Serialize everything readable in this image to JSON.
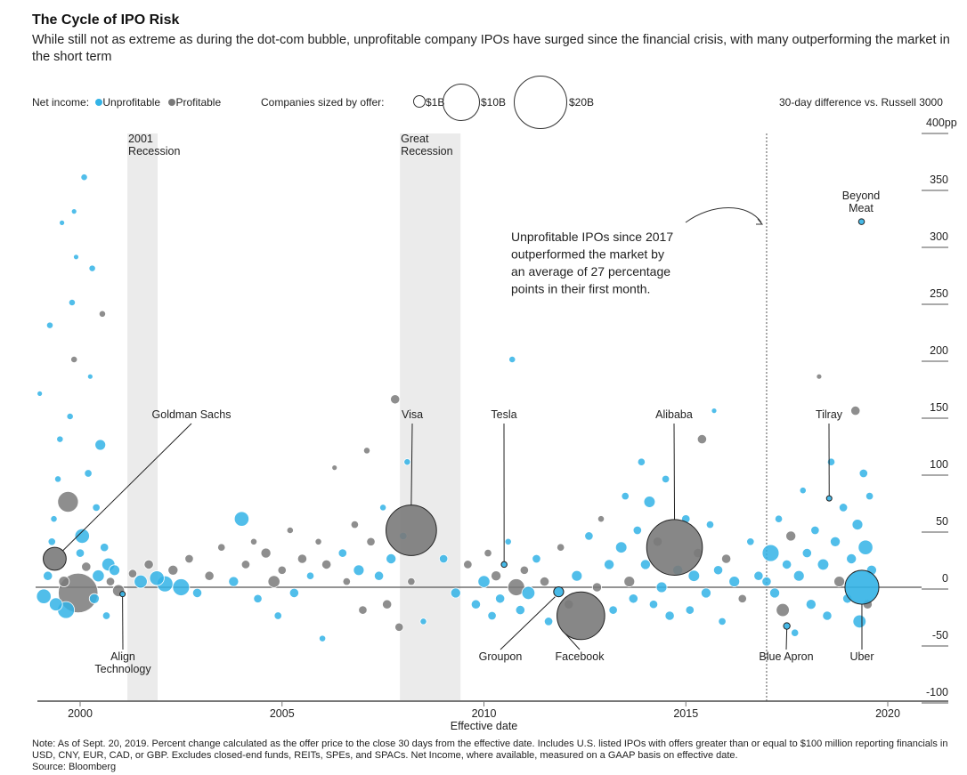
{
  "header": {
    "title": "The Cycle of IPO Risk",
    "subtitle": "While still not as extreme as during the dot-com bubble, unprofitable company IPOs have surged since the financial crisis, with many outperforming the market in the short term"
  },
  "legend": {
    "net_income_label": "Net income:",
    "unprofitable": "Unprofitable",
    "profitable": "Profitable",
    "size_label": "Companies sized by offer:",
    "sizes": [
      {
        "label": "$1B",
        "value": 1
      },
      {
        "label": "$10B",
        "value": 10
      },
      {
        "label": "$20B",
        "value": 20
      }
    ],
    "y_title": "30-day difference vs. Russell 3000"
  },
  "colors": {
    "unprofitable": "#33b3e6",
    "profitable": "#7a7a7a",
    "recession_shade": "#ebebeb"
  },
  "chart_data": {
    "type": "scatter",
    "xlabel": "Effective date",
    "ylabel": "30-day difference vs. Russell 3000",
    "xlim": [
      1998.9,
      2021.5
    ],
    "ylim": [
      -100,
      400
    ],
    "x_ticks": [
      {
        "v": 2000,
        "label": "2000"
      },
      {
        "v": 2005,
        "label": "2005"
      },
      {
        "v": 2010,
        "label": "2010"
      },
      {
        "v": 2015,
        "label": "2015"
      },
      {
        "v": 2020,
        "label": "2020"
      }
    ],
    "y_ticks": [
      {
        "v": 400,
        "label": "400pp"
      },
      {
        "v": 350,
        "label": "350"
      },
      {
        "v": 300,
        "label": "300"
      },
      {
        "v": 250,
        "label": "250"
      },
      {
        "v": 200,
        "label": "200"
      },
      {
        "v": 150,
        "label": "150"
      },
      {
        "v": 100,
        "label": "100"
      },
      {
        "v": 50,
        "label": "50"
      },
      {
        "v": 0,
        "label": "0"
      },
      {
        "v": -50,
        "label": "-50"
      },
      {
        "v": -100,
        "label": "-100"
      }
    ],
    "recessions": [
      {
        "start": 2001.17,
        "end": 2001.92,
        "label": [
          "2001",
          "Recession"
        ]
      },
      {
        "start": 2007.92,
        "end": 2009.42,
        "label": [
          "Great",
          "Recession"
        ]
      }
    ],
    "reference_line": {
      "x": 2017.0,
      "annotation": [
        "Unprofitable IPOs since 2017",
        "outperformed the market by",
        "an average of 27 percentage",
        "points in their first month."
      ]
    },
    "point_fields": [
      "date",
      "diff_pp",
      "offer_billion_usd",
      "profitable"
    ],
    "points": [
      [
        1999.1,
        -8,
        1.5,
        0
      ],
      [
        1999.2,
        10,
        0.6,
        0
      ],
      [
        1999.3,
        40,
        0.4,
        0
      ],
      [
        1999.35,
        60,
        0.3,
        0
      ],
      [
        1999.4,
        -15,
        1.2,
        0
      ],
      [
        1999.45,
        95,
        0.3,
        0
      ],
      [
        1999.5,
        130,
        0.3,
        0
      ],
      [
        1999.55,
        320,
        0.2,
        0
      ],
      [
        1999.6,
        5,
        0.8,
        1
      ],
      [
        1999.65,
        -20,
        2,
        0
      ],
      [
        1999.7,
        75,
        3,
        1
      ],
      [
        1999.75,
        150,
        0.3,
        0
      ],
      [
        1999.8,
        250,
        0.3,
        0
      ],
      [
        1999.85,
        200,
        0.3,
        1
      ],
      [
        1999.9,
        290,
        0.2,
        0
      ],
      [
        1999.95,
        -5,
        11,
        1
      ],
      [
        2000.0,
        30,
        0.5,
        0
      ],
      [
        2000.05,
        45,
        1.5,
        0
      ],
      [
        2000.1,
        360,
        0.3,
        0
      ],
      [
        2000.15,
        18,
        0.6,
        1
      ],
      [
        2000.2,
        100,
        0.4,
        0
      ],
      [
        2000.25,
        185,
        0.2,
        0
      ],
      [
        2000.3,
        280,
        0.3,
        0
      ],
      [
        2000.35,
        -10,
        0.7,
        0
      ],
      [
        2000.4,
        70,
        0.4,
        0
      ],
      [
        2000.45,
        10,
        1,
        0
      ],
      [
        2000.5,
        125,
        0.8,
        0
      ],
      [
        2000.55,
        240,
        0.3,
        1
      ],
      [
        2000.6,
        35,
        0.5,
        0
      ],
      [
        2000.65,
        -25,
        0.4,
        0
      ],
      [
        2000.7,
        20,
        1.2,
        0
      ],
      [
        2000.75,
        5,
        0.5,
        1
      ],
      [
        2000.85,
        15,
        0.8,
        0
      ],
      [
        2000.95,
        -3,
        1,
        1
      ],
      [
        1999.0,
        170,
        0.2,
        0
      ],
      [
        1999.25,
        230,
        0.3,
        0
      ],
      [
        1999.85,
        330,
        0.2,
        0
      ],
      [
        2001.3,
        12,
        0.5,
        1
      ],
      [
        2001.5,
        5,
        1.2,
        0
      ],
      [
        2001.7,
        20,
        0.6,
        1
      ],
      [
        2001.9,
        8,
        1.5,
        0
      ],
      [
        2002.1,
        3,
        1.8,
        0
      ],
      [
        2002.3,
        15,
        0.7,
        1
      ],
      [
        2002.5,
        0,
        2,
        0
      ],
      [
        2002.7,
        25,
        0.5,
        1
      ],
      [
        2002.9,
        -5,
        0.6,
        0
      ],
      [
        2003.2,
        10,
        0.6,
        1
      ],
      [
        2003.5,
        35,
        0.4,
        1
      ],
      [
        2003.8,
        5,
        0.7,
        0
      ],
      [
        2004.0,
        60,
        1.5,
        0
      ],
      [
        2004.1,
        20,
        0.5,
        1
      ],
      [
        2004.3,
        40,
        0.3,
        1
      ],
      [
        2004.4,
        -10,
        0.5,
        0
      ],
      [
        2004.6,
        30,
        0.7,
        1
      ],
      [
        2004.8,
        5,
        1,
        1
      ],
      [
        2004.9,
        -25,
        0.4,
        0
      ],
      [
        2005.0,
        15,
        0.5,
        1
      ],
      [
        2005.2,
        50,
        0.3,
        1
      ],
      [
        2005.3,
        -5,
        0.6,
        0
      ],
      [
        2005.5,
        25,
        0.6,
        1
      ],
      [
        2005.7,
        10,
        0.4,
        0
      ],
      [
        2005.9,
        40,
        0.3,
        1
      ],
      [
        2006.0,
        -45,
        0.3,
        0
      ],
      [
        2006.1,
        20,
        0.6,
        1
      ],
      [
        2006.3,
        105,
        0.2,
        1
      ],
      [
        2006.5,
        30,
        0.5,
        0
      ],
      [
        2006.6,
        5,
        0.4,
        1
      ],
      [
        2006.8,
        55,
        0.4,
        1
      ],
      [
        2006.9,
        15,
        0.8,
        0
      ],
      [
        2007.0,
        -20,
        0.5,
        1
      ],
      [
        2007.1,
        120,
        0.3,
        1
      ],
      [
        2007.2,
        40,
        0.5,
        1
      ],
      [
        2007.4,
        10,
        0.6,
        0
      ],
      [
        2007.5,
        70,
        0.3,
        0
      ],
      [
        2007.6,
        -15,
        0.6,
        1
      ],
      [
        2007.7,
        25,
        0.7,
        0
      ],
      [
        2007.8,
        165,
        0.6,
        1
      ],
      [
        2007.9,
        -35,
        0.5,
        1
      ],
      [
        2008.0,
        45,
        0.4,
        0
      ],
      [
        2008.1,
        110,
        0.3,
        0
      ],
      [
        2008.2,
        5,
        0.4,
        1
      ],
      [
        2008.5,
        -30,
        0.3,
        0
      ],
      [
        2009.0,
        25,
        0.5,
        0
      ],
      [
        2009.3,
        -5,
        0.7,
        0
      ],
      [
        2009.6,
        20,
        0.5,
        1
      ],
      [
        2009.8,
        -15,
        0.6,
        0
      ],
      [
        2010.0,
        5,
        1,
        0
      ],
      [
        2010.1,
        30,
        0.4,
        1
      ],
      [
        2010.2,
        -25,
        0.5,
        0
      ],
      [
        2010.3,
        10,
        0.7,
        1
      ],
      [
        2010.4,
        -10,
        0.6,
        0
      ],
      [
        2010.6,
        40,
        0.3,
        0
      ],
      [
        2010.7,
        200,
        0.3,
        0
      ],
      [
        2010.8,
        0,
        2,
        1
      ],
      [
        2010.9,
        -20,
        0.6,
        0
      ],
      [
        2011.0,
        15,
        0.5,
        1
      ],
      [
        2011.1,
        -5,
        1.2,
        0
      ],
      [
        2011.3,
        25,
        0.5,
        0
      ],
      [
        2011.5,
        5,
        0.6,
        1
      ],
      [
        2011.6,
        -30,
        0.5,
        0
      ],
      [
        2011.9,
        35,
        0.4,
        1
      ],
      [
        2012.1,
        -15,
        0.6,
        1
      ],
      [
        2012.3,
        10,
        0.8,
        0
      ],
      [
        2012.6,
        45,
        0.5,
        0
      ],
      [
        2012.8,
        0,
        0.6,
        1
      ],
      [
        2012.9,
        60,
        0.3,
        1
      ],
      [
        2013.1,
        20,
        0.7,
        0
      ],
      [
        2013.2,
        -20,
        0.5,
        0
      ],
      [
        2013.4,
        35,
        0.9,
        0
      ],
      [
        2013.5,
        80,
        0.4,
        0
      ],
      [
        2013.6,
        5,
        0.8,
        1
      ],
      [
        2013.7,
        -10,
        0.6,
        0
      ],
      [
        2013.8,
        50,
        0.5,
        0
      ],
      [
        2013.9,
        110,
        0.4,
        0
      ],
      [
        2014.0,
        20,
        0.7,
        0
      ],
      [
        2014.1,
        75,
        0.9,
        0
      ],
      [
        2014.2,
        -15,
        0.5,
        0
      ],
      [
        2014.3,
        40,
        0.6,
        1
      ],
      [
        2014.4,
        0,
        0.8,
        0
      ],
      [
        2014.5,
        95,
        0.4,
        0
      ],
      [
        2014.6,
        -25,
        0.6,
        0
      ],
      [
        2014.8,
        15,
        0.7,
        0
      ],
      [
        2015.0,
        60,
        0.5,
        0
      ],
      [
        2015.1,
        -20,
        0.5,
        0
      ],
      [
        2015.2,
        10,
        0.9,
        0
      ],
      [
        2015.3,
        30,
        0.6,
        1
      ],
      [
        2015.4,
        130,
        0.6,
        1
      ],
      [
        2015.5,
        -5,
        0.7,
        0
      ],
      [
        2015.6,
        55,
        0.4,
        0
      ],
      [
        2015.7,
        155,
        0.2,
        0
      ],
      [
        2015.8,
        15,
        0.6,
        0
      ],
      [
        2015.9,
        -30,
        0.4,
        0
      ],
      [
        2016.0,
        25,
        0.6,
        1
      ],
      [
        2016.2,
        5,
        0.8,
        0
      ],
      [
        2016.4,
        -10,
        0.5,
        1
      ],
      [
        2016.6,
        40,
        0.4,
        0
      ],
      [
        2016.8,
        10,
        0.6,
        0
      ],
      [
        2017.0,
        5,
        0.6,
        0
      ],
      [
        2017.1,
        30,
        2,
        0
      ],
      [
        2017.2,
        -5,
        0.7,
        0
      ],
      [
        2017.3,
        60,
        0.4,
        0
      ],
      [
        2017.4,
        -20,
        1.2,
        1
      ],
      [
        2017.5,
        20,
        0.6,
        0
      ],
      [
        2017.6,
        45,
        0.7,
        1
      ],
      [
        2017.7,
        -40,
        0.4,
        0
      ],
      [
        2017.8,
        10,
        0.8,
        0
      ],
      [
        2017.9,
        85,
        0.3,
        0
      ],
      [
        2018.0,
        30,
        0.6,
        0
      ],
      [
        2018.1,
        -15,
        0.7,
        0
      ],
      [
        2018.2,
        50,
        0.5,
        0
      ],
      [
        2018.3,
        185,
        0.2,
        1
      ],
      [
        2018.4,
        20,
        0.9,
        0
      ],
      [
        2018.5,
        -25,
        0.6,
        0
      ],
      [
        2018.6,
        110,
        0.4,
        0
      ],
      [
        2018.7,
        40,
        0.7,
        0
      ],
      [
        2018.8,
        5,
        0.8,
        1
      ],
      [
        2018.9,
        70,
        0.5,
        0
      ],
      [
        2019.0,
        -10,
        0.6,
        0
      ],
      [
        2019.1,
        25,
        0.7,
        0
      ],
      [
        2019.2,
        155,
        0.6,
        1
      ],
      [
        2019.25,
        55,
        0.8,
        0
      ],
      [
        2019.3,
        -30,
        1.2,
        0
      ],
      [
        2019.4,
        100,
        0.5,
        0
      ],
      [
        2019.45,
        35,
        1.5,
        0
      ],
      [
        2019.5,
        -15,
        0.6,
        1
      ],
      [
        2019.55,
        80,
        0.4,
        0
      ],
      [
        2019.6,
        15,
        0.7,
        0
      ]
    ],
    "labeled_companies": [
      {
        "name": "Goldman Sachs",
        "date": 1999.37,
        "diff_pp": 25,
        "offer_billion_usd": 3.7,
        "profitable": 1
      },
      {
        "name": "Align Technology",
        "date": 2001.05,
        "diff_pp": -6,
        "offer_billion_usd": 0.13,
        "profitable": 0
      },
      {
        "name": "Visa",
        "date": 2008.2,
        "diff_pp": 50,
        "offer_billion_usd": 17.9,
        "profitable": 1
      },
      {
        "name": "Tesla",
        "date": 2010.5,
        "diff_pp": 20,
        "offer_billion_usd": 0.23,
        "profitable": 0
      },
      {
        "name": "Groupon",
        "date": 2011.85,
        "diff_pp": -4,
        "offer_billion_usd": 0.7,
        "profitable": 0
      },
      {
        "name": "Facebook",
        "date": 2012.4,
        "diff_pp": -25,
        "offer_billion_usd": 16,
        "profitable": 1
      },
      {
        "name": "Alibaba",
        "date": 2014.72,
        "diff_pp": 35,
        "offer_billion_usd": 21.8,
        "profitable": 1
      },
      {
        "name": "Blue Apron",
        "date": 2017.5,
        "diff_pp": -34,
        "offer_billion_usd": 0.3,
        "profitable": 0
      },
      {
        "name": "Tilray",
        "date": 2018.55,
        "diff_pp": 78,
        "offer_billion_usd": 0.15,
        "profitable": 0
      },
      {
        "name": "Uber",
        "date": 2019.36,
        "diff_pp": 0,
        "offer_billion_usd": 8.1,
        "profitable": 0
      },
      {
        "name": "Beyond Meat",
        "date": 2019.35,
        "diff_pp": 321,
        "offer_billion_usd": 0.24,
        "profitable": 0
      }
    ]
  },
  "note": "Note: As of Sept. 20, 2019. Percent change calculated as the offer price to the close 30 days from the effective date. Includes U.S. listed IPOs with offers greater than or equal to $100 million reporting financials in USD, CNY, EUR, CAD, or GBP. Excludes closed-end funds, REITs, SPEs, and SPACs. Net Income, where available, measured on a GAAP basis on effective date.",
  "source": "Source: Bloomberg"
}
